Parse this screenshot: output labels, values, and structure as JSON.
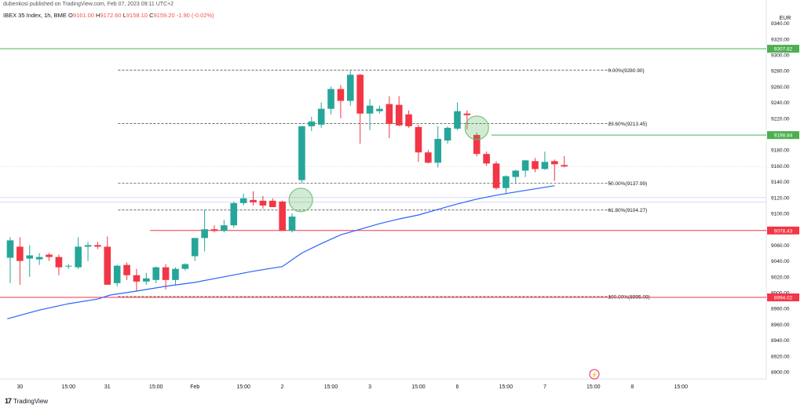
{
  "header": {
    "published": "dubenkosi published on TradingView.com, Feb 07, 2023 09:11 UTC+2",
    "symbol": "IBEX 35 Index, 1h, BME",
    "o_label": "O",
    "o": "9161.00",
    "h_label": "H",
    "h": "9172.60",
    "l_label": "L",
    "l": "9158.10",
    "c_label": "C",
    "c": "9159.20",
    "change": "-1.90 (-0.02%)"
  },
  "footer": {
    "brand": "TradingView"
  },
  "colors": {
    "up": "#26a69a",
    "down": "#f23645",
    "ma": "#2962ff",
    "green_line": "#4caf50",
    "red_line": "#f23645"
  },
  "chart_data": {
    "type": "candlestick",
    "currency": "EUR",
    "ylim": [
      8883,
      9345
    ],
    "y_ticks": [
      8900,
      8920,
      8940,
      8960,
      8980,
      9000,
      9020,
      9040,
      9060,
      9080,
      9100,
      9120,
      9140,
      9160,
      9180,
      9200,
      9220,
      9240,
      9260,
      9280,
      9300,
      9320,
      9340
    ],
    "x_ticks": [
      {
        "label": "30",
        "i": 1
      },
      {
        "label": "15:00",
        "i": 6
      },
      {
        "label": "31",
        "i": 10
      },
      {
        "label": "15:00",
        "i": 15
      },
      {
        "label": "Feb",
        "i": 19
      },
      {
        "label": "15:00",
        "i": 24
      },
      {
        "label": "2",
        "i": 28
      },
      {
        "label": "15:00",
        "i": 33
      },
      {
        "label": "3",
        "i": 37
      },
      {
        "label": "15:00",
        "i": 42
      },
      {
        "label": "6",
        "i": 46
      },
      {
        "label": "15:00",
        "i": 51
      },
      {
        "label": "7",
        "i": 55
      },
      {
        "label": "15:00",
        "i": 60
      },
      {
        "label": "8",
        "i": 64
      },
      {
        "label": "15:00",
        "i": 69
      }
    ],
    "candles": [
      {
        "o": 9044,
        "h": 9070,
        "l": 9012,
        "c": 9066
      },
      {
        "o": 9058,
        "h": 9070,
        "l": 9010,
        "c": 9040
      },
      {
        "o": 9043,
        "h": 9060,
        "l": 9020,
        "c": 9047
      },
      {
        "o": 9042,
        "h": 9050,
        "l": 9035,
        "c": 9045
      },
      {
        "o": 9048,
        "h": 9050,
        "l": 9040,
        "c": 9045
      },
      {
        "o": 9045,
        "h": 9048,
        "l": 9022,
        "c": 9032
      },
      {
        "o": 9033,
        "h": 9036,
        "l": 9030,
        "c": 9034
      },
      {
        "o": 9032,
        "h": 9070,
        "l": 9030,
        "c": 9058
      },
      {
        "o": 9058,
        "h": 9064,
        "l": 9040,
        "c": 9060
      },
      {
        "o": 9060,
        "h": 9064,
        "l": 9055,
        "c": 9058
      },
      {
        "o": 9058,
        "h": 9071,
        "l": 9010,
        "c": 9010
      },
      {
        "o": 9012,
        "h": 9035,
        "l": 9008,
        "c": 9034
      },
      {
        "o": 9035,
        "h": 9038,
        "l": 9016,
        "c": 9022
      },
      {
        "o": 9022,
        "h": 9030,
        "l": 9002,
        "c": 9014
      },
      {
        "o": 9014,
        "h": 9025,
        "l": 9010,
        "c": 9018
      },
      {
        "o": 9016,
        "h": 9033,
        "l": 9012,
        "c": 9032
      },
      {
        "o": 9032,
        "h": 9036,
        "l": 9004,
        "c": 9016
      },
      {
        "o": 9016,
        "h": 9032,
        "l": 9010,
        "c": 9030
      },
      {
        "o": 9030,
        "h": 9037,
        "l": 9028,
        "c": 9036
      },
      {
        "o": 9046,
        "h": 9069,
        "l": 9040,
        "c": 9069
      },
      {
        "o": 9069,
        "h": 9105,
        "l": 9052,
        "c": 9080
      },
      {
        "o": 9080,
        "h": 9085,
        "l": 9076,
        "c": 9078
      },
      {
        "o": 9078,
        "h": 9092,
        "l": 9076,
        "c": 9085
      },
      {
        "o": 9085,
        "h": 9115,
        "l": 9082,
        "c": 9113
      },
      {
        "o": 9113,
        "h": 9125,
        "l": 9110,
        "c": 9119
      },
      {
        "o": 9117,
        "h": 9128,
        "l": 9110,
        "c": 9114
      },
      {
        "o": 9116,
        "h": 9122,
        "l": 9106,
        "c": 9110
      },
      {
        "o": 9116,
        "h": 9119,
        "l": 9108,
        "c": 9108
      },
      {
        "o": 9115,
        "h": 9116,
        "l": 9078,
        "c": 9078
      },
      {
        "o": 9078,
        "h": 9100,
        "l": 9076,
        "c": 9096
      },
      {
        "o": 9142,
        "h": 9210,
        "l": 9138,
        "c": 9210
      },
      {
        "o": 9210,
        "h": 9222,
        "l": 9204,
        "c": 9216
      },
      {
        "o": 9212,
        "h": 9240,
        "l": 9208,
        "c": 9232
      },
      {
        "o": 9232,
        "h": 9260,
        "l": 9225,
        "c": 9257
      },
      {
        "o": 9257,
        "h": 9262,
        "l": 9220,
        "c": 9242
      },
      {
        "o": 9242,
        "h": 9280,
        "l": 9236,
        "c": 9275
      },
      {
        "o": 9275,
        "h": 9276,
        "l": 9188,
        "c": 9226
      },
      {
        "o": 9226,
        "h": 9244,
        "l": 9205,
        "c": 9236
      },
      {
        "o": 9229,
        "h": 9236,
        "l": 9226,
        "c": 9232
      },
      {
        "o": 9238,
        "h": 9248,
        "l": 9195,
        "c": 9213
      },
      {
        "o": 9237,
        "h": 9248,
        "l": 9210,
        "c": 9211
      },
      {
        "o": 9225,
        "h": 9230,
        "l": 9208,
        "c": 9210
      },
      {
        "o": 9209,
        "h": 9212,
        "l": 9165,
        "c": 9177
      },
      {
        "o": 9177,
        "h": 9180,
        "l": 9163,
        "c": 9164
      },
      {
        "o": 9164,
        "h": 9210,
        "l": 9158,
        "c": 9194
      },
      {
        "o": 9192,
        "h": 9210,
        "l": 9188,
        "c": 9208
      },
      {
        "o": 9207,
        "h": 9240,
        "l": 9205,
        "c": 9229
      },
      {
        "o": 9226,
        "h": 9230,
        "l": 9206,
        "c": 9224
      },
      {
        "o": 9199,
        "h": 9202,
        "l": 9172,
        "c": 9175
      },
      {
        "o": 9175,
        "h": 9178,
        "l": 9160,
        "c": 9163
      },
      {
        "o": 9163,
        "h": 9166,
        "l": 9130,
        "c": 9132
      },
      {
        "o": 9132,
        "h": 9148,
        "l": 9124,
        "c": 9147
      },
      {
        "o": 9146,
        "h": 9155,
        "l": 9138,
        "c": 9154
      },
      {
        "o": 9154,
        "h": 9167,
        "l": 9146,
        "c": 9167
      },
      {
        "o": 9166,
        "h": 9170,
        "l": 9152,
        "c": 9156
      },
      {
        "o": 9156,
        "h": 9178,
        "l": 9155,
        "c": 9165
      },
      {
        "o": 9166,
        "h": 9168,
        "l": 9141,
        "c": 9162
      },
      {
        "o": 9161,
        "h": 9172.6,
        "l": 9158.1,
        "c": 9159.2
      }
    ],
    "moving_average": [
      [
        -0.3,
        8967
      ],
      [
        3,
        8978
      ],
      [
        6,
        8986
      ],
      [
        9,
        8992
      ],
      [
        10.3,
        8997
      ],
      [
        13,
        9002
      ],
      [
        16,
        9008
      ],
      [
        19,
        9013
      ],
      [
        22,
        9020
      ],
      [
        25,
        9027
      ],
      [
        28,
        9033
      ],
      [
        30,
        9050
      ],
      [
        32,
        9062
      ],
      [
        34,
        9073
      ],
      [
        36,
        9080
      ],
      [
        38,
        9087
      ],
      [
        40,
        9093
      ],
      [
        42,
        9098
      ],
      [
        44,
        9105
      ],
      [
        46,
        9112
      ],
      [
        48,
        9118
      ],
      [
        50,
        9123
      ],
      [
        52,
        9127
      ],
      [
        54,
        9131
      ],
      [
        56,
        9135
      ]
    ],
    "fibonacci": [
      {
        "label": "0.00%(9280.90)",
        "value": 9280.9
      },
      {
        "label": "23.60%(9213.45)",
        "value": 9213.45
      },
      {
        "label": "50.00%(9137.99)",
        "value": 9137.99
      },
      {
        "label": "61.80%(9104.27)",
        "value": 9104.27
      },
      {
        "label": "100.00%(8995.09)",
        "value": 8995.09
      }
    ],
    "horizontal_levels": [
      {
        "value": 9307.82,
        "label": "9307.82",
        "color": "green"
      },
      {
        "value": 9198.84,
        "label": "9198.84",
        "color": "green"
      },
      {
        "value": 9078.43,
        "label": "9078.43",
        "color": "red"
      },
      {
        "value": 8994.02,
        "label": "8994.02",
        "color": "red"
      }
    ],
    "current_price": 9159.2,
    "highlight_circles": [
      {
        "i": 29.9,
        "y": 9117
      },
      {
        "i": 48,
        "y": 9208
      }
    ]
  }
}
